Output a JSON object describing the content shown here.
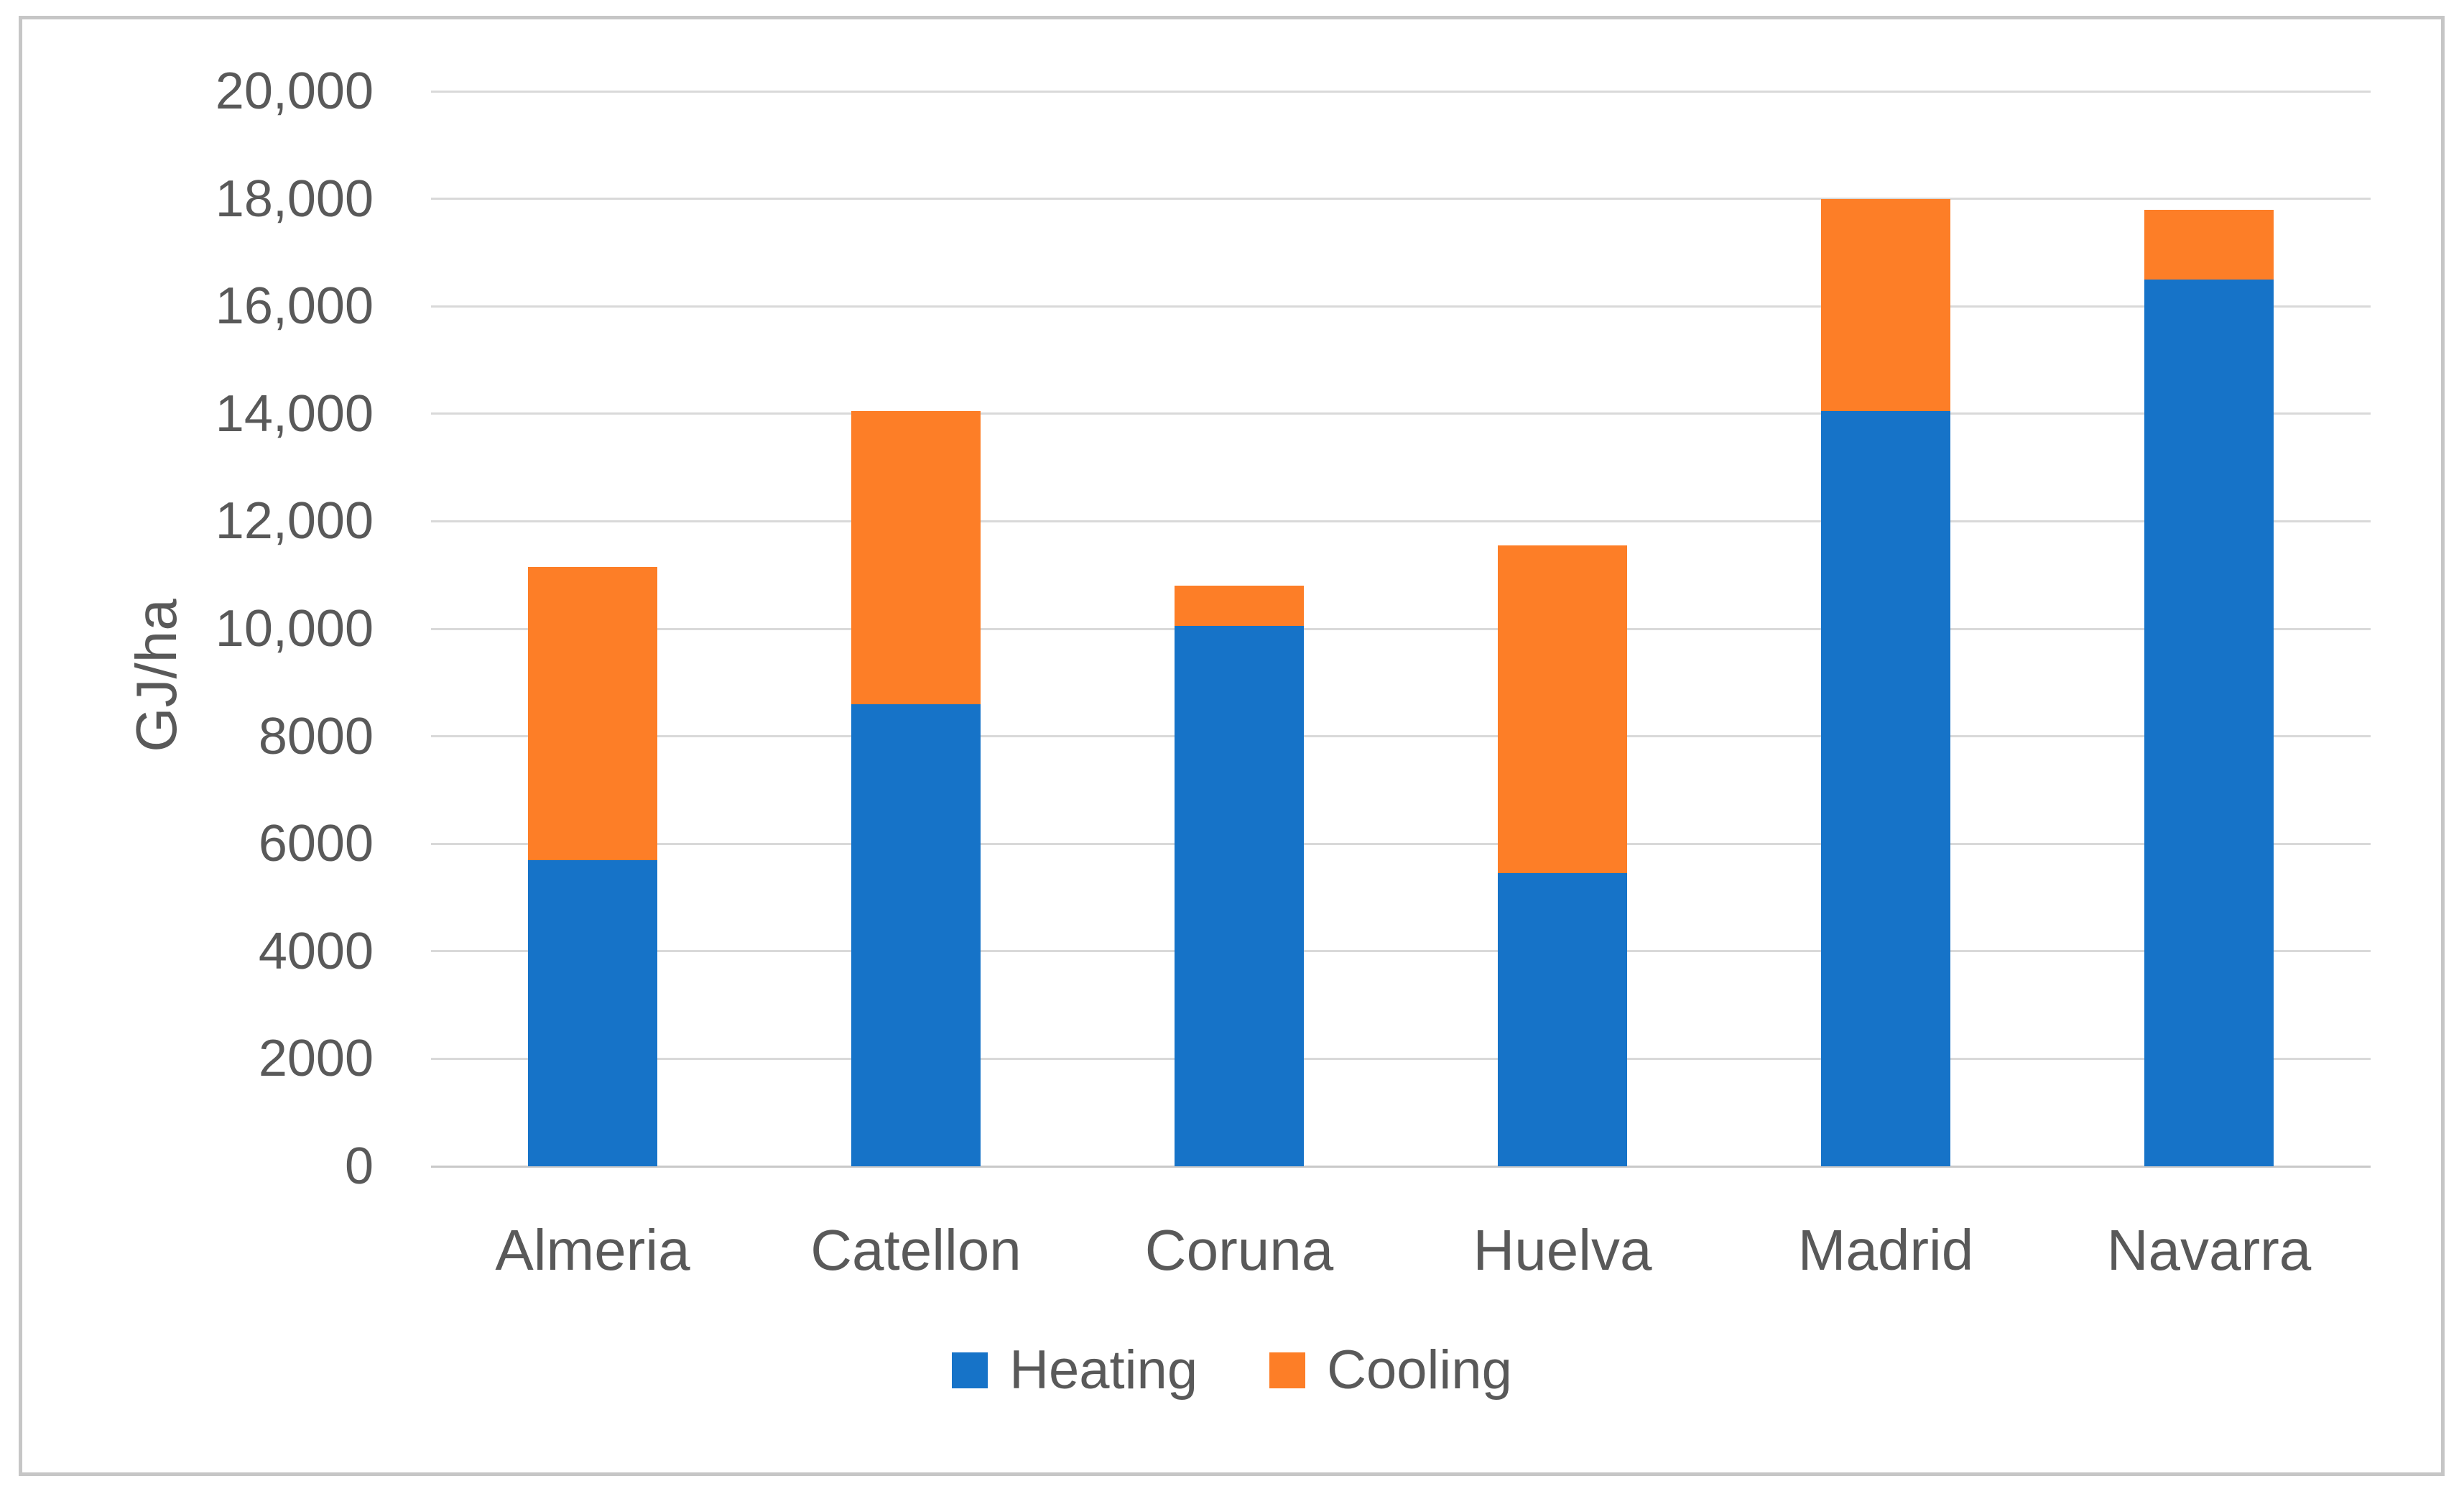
{
  "chart_data": {
    "type": "bar",
    "stacked": true,
    "title": "",
    "xlabel": "",
    "ylabel": "GJ/ha",
    "categories": [
      "Almeria",
      "Catellon",
      "Coruna",
      "Huelva",
      "Madrid",
      "Navarra"
    ],
    "series": [
      {
        "name": "Heating",
        "color": "#1673c8",
        "values": [
          5700,
          8600,
          10050,
          5450,
          14050,
          16500
        ]
      },
      {
        "name": "Cooling",
        "color": "#fd7e27",
        "values": [
          5450,
          5450,
          750,
          6100,
          3950,
          1300
        ]
      }
    ],
    "totals": [
      11150,
      14050,
      10800,
      11550,
      18000,
      17800
    ],
    "ylim": [
      0,
      20000
    ],
    "ytick_interval": 2000,
    "ytick_labels": [
      "20,000",
      "18,000",
      "16,000",
      "14,000",
      "12,000",
      "10,000",
      "8000",
      "6000",
      "4000",
      "2000",
      "0"
    ],
    "ytick_values": [
      20000,
      18000,
      16000,
      14000,
      12000,
      10000,
      8000,
      6000,
      4000,
      2000,
      0
    ],
    "grid": "horizontal",
    "legend_position": "bottom-center",
    "colors": {
      "heating": "#1673c8",
      "cooling": "#fd7e27",
      "gridline": "#d9d9d9",
      "axis_text": "#595959",
      "frame_border": "#c6c6c6",
      "background": "#ffffff"
    }
  },
  "legend": {
    "items": [
      {
        "label": "Heating",
        "color": "#1673c8"
      },
      {
        "label": "Cooling",
        "color": "#fd7e27"
      }
    ]
  }
}
